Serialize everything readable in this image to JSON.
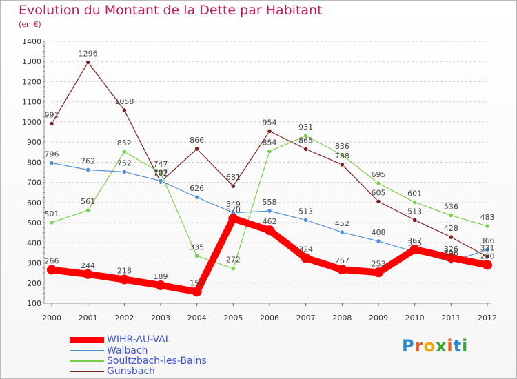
{
  "header": {
    "title": "Evolution du Montant de la Dette par Habitant",
    "subtitle": "(en €)"
  },
  "logo": {
    "text": "Proxiti",
    "letter_colors": [
      "#2e8bd0",
      "#e65c2b",
      "#f2a30f",
      "#3aa635",
      "#e65c2b",
      "#2e8bd0",
      "#3aa635"
    ]
  },
  "chart_data": {
    "type": "line",
    "title": "Evolution du Montant de la Dette par Habitant",
    "subtitle": "(en €)",
    "xlabel": "",
    "ylabel": "",
    "x": [
      "2000",
      "2001",
      "2002",
      "2003",
      "2004",
      "2005",
      "2006",
      "2007",
      "2008",
      "2009",
      "2010",
      "2011",
      "2012"
    ],
    "ylim": [
      100,
      1400
    ],
    "yticks": [
      100,
      200,
      300,
      400,
      500,
      600,
      700,
      800,
      900,
      1000,
      1100,
      1200,
      1300,
      1400
    ],
    "grid": "horizontal dashed",
    "legend_position": "bottom-left",
    "series": [
      {
        "name": "WIHR-AU-VAL",
        "color": "#ff0000",
        "values": [
          266,
          244,
          218,
          189,
          157,
          520,
          462,
          324,
          267,
          253,
          367,
          326,
          290
        ]
      },
      {
        "name": "Walbach",
        "color": "#4f8fd6",
        "values": [
          796,
          762,
          752,
          707,
          626,
          549,
          558,
          513,
          452,
          408,
          355,
          306,
          366
        ]
      },
      {
        "name": "Soultzbach-les-Bains",
        "color": "#7ccf4a",
        "values": [
          501,
          561,
          852,
          747,
          335,
          272,
          854,
          931,
          836,
          695,
          601,
          536,
          483
        ]
      },
      {
        "name": "Gunsbach",
        "color": "#7a1f1f",
        "values": [
          991,
          1296,
          1058,
          702,
          866,
          681,
          954,
          865,
          788,
          605,
          513,
          428,
          331
        ]
      }
    ]
  }
}
